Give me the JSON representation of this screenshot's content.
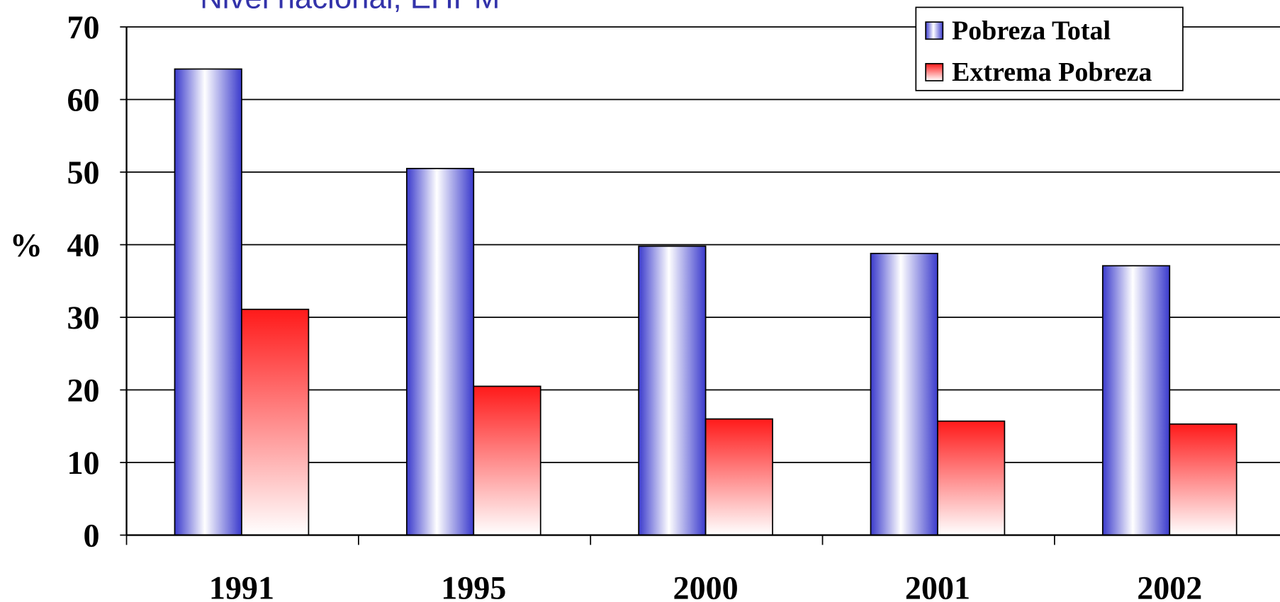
{
  "chart_data": {
    "type": "bar",
    "subtitle": "Nivel nacional, EHPM",
    "ylabel": "%",
    "categories": [
      "1991",
      "1995",
      "2000",
      "2001",
      "2002"
    ],
    "series": [
      {
        "name": "Pobreza Total",
        "color": "#3a3acc",
        "values": [
          64.2,
          50.5,
          39.8,
          38.8,
          37.1
        ]
      },
      {
        "name": "Extrema Pobreza",
        "color": "#ff1a1a",
        "values": [
          31.1,
          20.5,
          16.0,
          15.7,
          15.3
        ]
      }
    ],
    "ylim": [
      0,
      70
    ],
    "yticks": [
      0,
      10,
      20,
      30,
      40,
      50,
      60,
      70
    ],
    "grid": true,
    "legend": "upper right"
  }
}
